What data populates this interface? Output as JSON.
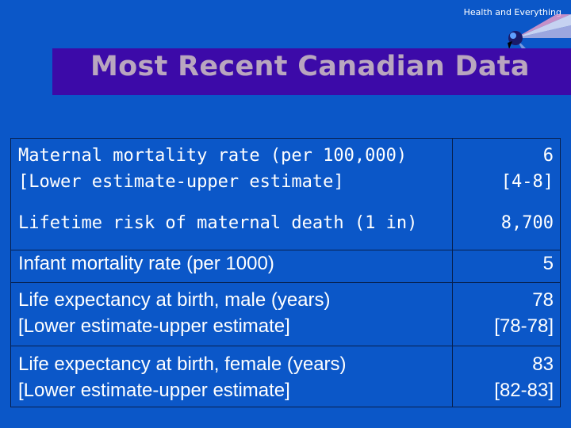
{
  "header": {
    "label": "Health and Everything"
  },
  "title": "Most Recent Canadian Data",
  "rows": [
    {
      "label_line1": "Maternal mortality rate (per 100,000)",
      "label_line2": "[Lower estimate-upper estimate]",
      "value_line1": "6",
      "value_line2": "[4-8]"
    },
    {
      "label_line1": "Lifetime risk of maternal death (1 in)",
      "value_line1": "8,700"
    },
    {
      "label_line1": "Infant mortality rate (per 1000)",
      "value_line1": "5"
    },
    {
      "label_line1": "Life expectancy at birth, male (years)",
      "label_line2": "[Lower estimate-upper estimate]",
      "value_line1": "78",
      "value_line2": "[78-78]"
    },
    {
      "label_line1": "Life expectancy at birth, female (years)",
      "label_line2": "[Lower estimate-upper estimate]",
      "value_line1": "83",
      "value_line2": "[82-83]"
    }
  ],
  "colors": {
    "background": "#0b57c8",
    "title_bar": "#3c0aa8",
    "title_text": "#b9a6bf",
    "grid": "#07204e"
  }
}
